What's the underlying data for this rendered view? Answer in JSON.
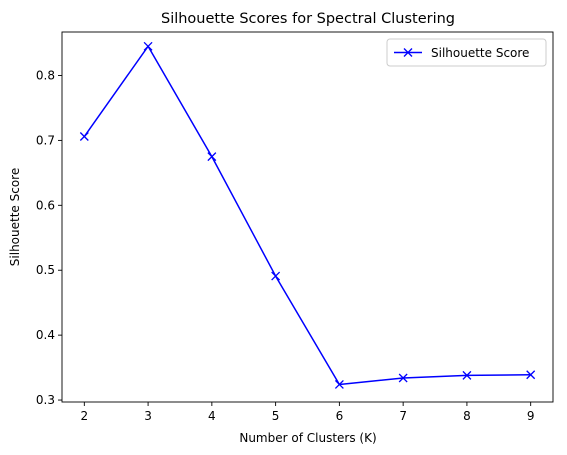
{
  "chart_data": {
    "type": "line",
    "title": "Silhouette Scores for Spectral Clustering",
    "xlabel": "Number of Clusters (K)",
    "ylabel": "Silhouette Score",
    "x": [
      2,
      3,
      4,
      5,
      6,
      7,
      8,
      9
    ],
    "xticks": [
      "2",
      "3",
      "4",
      "5",
      "6",
      "7",
      "8",
      "9"
    ],
    "yticks": [
      "0.3",
      "0.4",
      "0.5",
      "0.6",
      "0.7",
      "0.8"
    ],
    "ylim": [
      0.297,
      0.867
    ],
    "xlim": [
      1.65,
      9.35
    ],
    "grid": false,
    "legend_position": "top-right",
    "series": [
      {
        "name": "Silhouette Score",
        "color": "#0000ff",
        "marker": "x",
        "values": [
          0.706,
          0.845,
          0.675,
          0.491,
          0.324,
          0.334,
          0.338,
          0.339
        ]
      }
    ]
  }
}
